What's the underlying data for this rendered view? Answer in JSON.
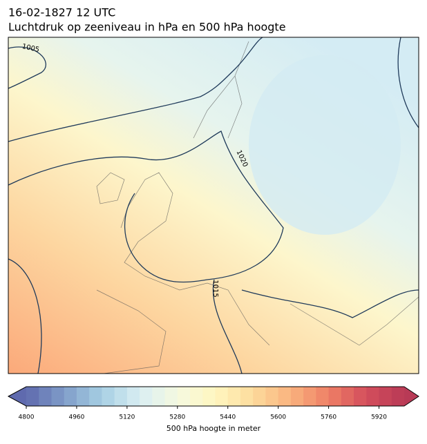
{
  "header": {
    "title": "16-02-1827 12 UTC",
    "subtitle": "Luchtdruk op zeeniveau in hPa en 500 hPa hoogte"
  },
  "map": {
    "contour_labels": [
      "1005",
      "1020",
      "1015"
    ]
  },
  "colorbar": {
    "label": "500 hPa hoogte in meter",
    "lim": [
      4800,
      6000
    ],
    "step": 40,
    "ticks": [
      4800,
      4960,
      5120,
      5280,
      5440,
      5600,
      5760,
      5920
    ],
    "colors": [
      "#5f6aae",
      "#7f9cc8",
      "#a6cfe3",
      "#d9eef3",
      "#f5f9e0",
      "#fff6c0",
      "#fddb9c",
      "#f9b27e",
      "#ee7f66",
      "#d44e5c",
      "#b83a56"
    ]
  }
}
